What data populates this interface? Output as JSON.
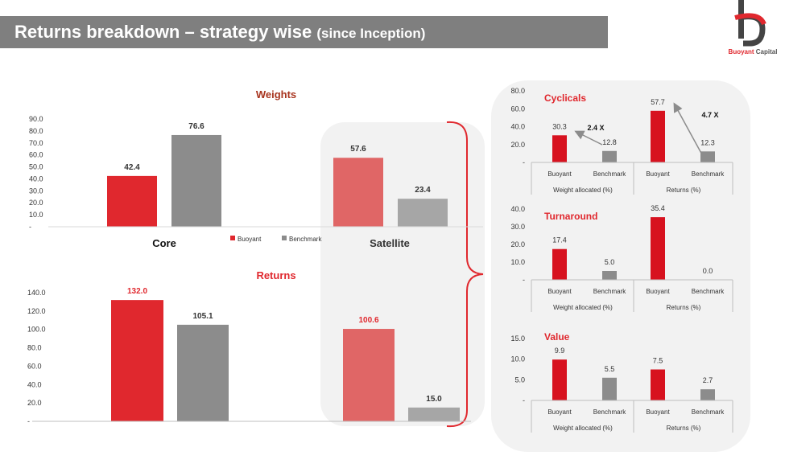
{
  "header": {
    "title": "Returns breakdown – strategy wise",
    "subtitle": "(since Inception)"
  },
  "logo": {
    "brand_red": "Buoyant",
    "brand_gray": "Capital"
  },
  "colors": {
    "buoyant": "#e0282e",
    "buoyant_light": "#e06666",
    "benchmark": "#8c8c8c",
    "title_dark": "#a8341e"
  },
  "chart_data": [
    {
      "type": "bar",
      "title": "Weights",
      "categories": [
        "Core",
        "Satellite"
      ],
      "yticks": [
        "90.0",
        "80.0",
        "70.0",
        "60.0",
        "50.0",
        "40.0",
        "30.0",
        "20.0",
        "10.0",
        "-"
      ],
      "ylim": [
        0,
        90
      ],
      "series": [
        {
          "name": "Buoyant",
          "values": [
            42.4,
            57.6
          ],
          "labels": [
            "42.4",
            "57.6"
          ]
        },
        {
          "name": "Benchmark",
          "values": [
            76.6,
            23.4
          ],
          "labels": [
            "76.6",
            "23.4"
          ]
        }
      ],
      "legend": "bottom-center"
    },
    {
      "type": "bar",
      "title": "Returns",
      "categories": [
        "Core",
        "Satellite"
      ],
      "yticks": [
        "140.0",
        "120.0",
        "100.0",
        "80.0",
        "60.0",
        "40.0",
        "20.0",
        "-"
      ],
      "ylim": [
        0,
        140
      ],
      "series": [
        {
          "name": "Buoyant",
          "values": [
            132.0,
            100.6
          ],
          "labels": [
            "132.0",
            "100.6"
          ]
        },
        {
          "name": "Benchmark",
          "values": [
            105.1,
            15.0
          ],
          "labels": [
            "105.1",
            "15.0"
          ]
        }
      ]
    },
    {
      "type": "bar",
      "title": "Cyclicals",
      "yticks": [
        "80.0",
        "60.0",
        "40.0",
        "20.0",
        "-"
      ],
      "ylim": [
        0,
        80
      ],
      "groups": [
        "Weight allocated (%)",
        "Returns (%)"
      ],
      "categories": [
        "Buoyant",
        "Benchmark",
        "Buoyant",
        "Benchmark"
      ],
      "values": [
        30.3,
        12.8,
        57.7,
        12.3
      ],
      "labels": [
        "30.3",
        "12.8",
        "57.7",
        "12.3"
      ],
      "annotations": [
        "2.4 X",
        "4.7 X"
      ]
    },
    {
      "type": "bar",
      "title": "Turnaround",
      "yticks": [
        "40.0",
        "30.0",
        "20.0",
        "10.0",
        "-"
      ],
      "ylim": [
        0,
        40
      ],
      "groups": [
        "Weight allocated (%)",
        "Returns (%)"
      ],
      "categories": [
        "Buoyant",
        "Benchmark",
        "Buoyant",
        "Benchmark"
      ],
      "values": [
        17.4,
        5.0,
        35.4,
        0.0
      ],
      "labels": [
        "17.4",
        "5.0",
        "35.4",
        "0.0"
      ]
    },
    {
      "type": "bar",
      "title": "Value",
      "yticks": [
        "15.0",
        "10.0",
        "5.0",
        "-"
      ],
      "ylim": [
        0,
        15
      ],
      "groups": [
        "Weight allocated (%)",
        "Returns (%)"
      ],
      "categories": [
        "Buoyant",
        "Benchmark",
        "Buoyant",
        "Benchmark"
      ],
      "values": [
        9.9,
        5.5,
        7.5,
        2.7
      ],
      "labels": [
        "9.9",
        "5.5",
        "7.5",
        "2.7"
      ]
    }
  ]
}
